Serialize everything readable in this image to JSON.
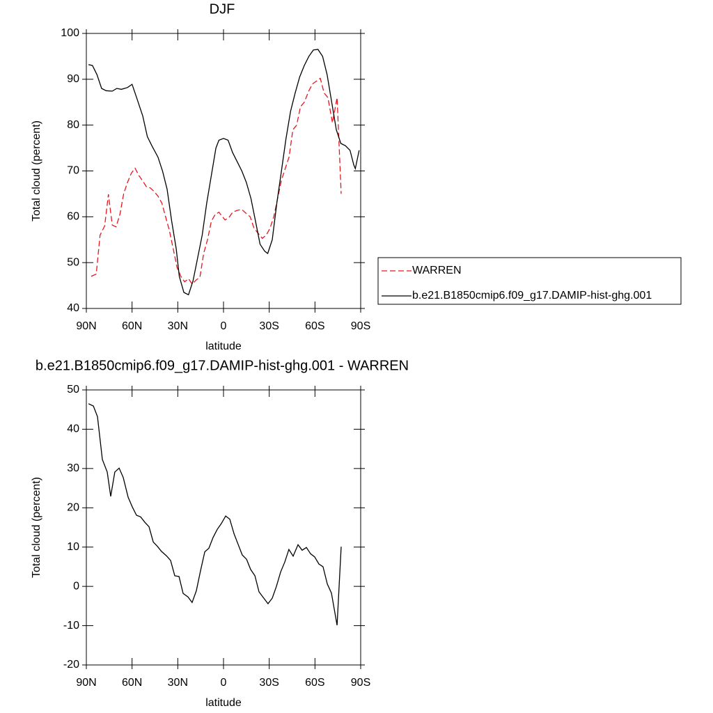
{
  "chart_data": [
    {
      "type": "line",
      "title": "DJF",
      "xlabel": "latitude",
      "ylabel": "Total cloud (percent)",
      "xlim": [
        90,
        -90
      ],
      "ylim": [
        40,
        100
      ],
      "xticks": [
        {
          "value": 90,
          "label": "90N"
        },
        {
          "value": 60,
          "label": "60N"
        },
        {
          "value": 30,
          "label": "30N"
        },
        0,
        {
          "value": -30,
          "label": "30S"
        },
        {
          "value": -60,
          "label": "60S"
        },
        {
          "value": -90,
          "label": "90S"
        }
      ],
      "yticks": [
        40,
        50,
        60,
        70,
        80,
        90,
        100
      ],
      "legend": "right",
      "series": [
        {
          "name": "WARREN",
          "color": "#e8141c",
          "dashed": true,
          "x": [
            86.8,
            83.5,
            81,
            78,
            75.5,
            73,
            70.5,
            68,
            65.5,
            63,
            60.5,
            58,
            55.5,
            53,
            50.5,
            48,
            45.5,
            43,
            40.5,
            38,
            35.5,
            33,
            30.5,
            28,
            25.5,
            23,
            20.5,
            18,
            15.5,
            13,
            10.5,
            8,
            5.5,
            3,
            -1,
            -3.5,
            -6,
            -9,
            -12,
            -15,
            -17.5,
            -20,
            -22.5,
            -25.5,
            -28,
            -30.5,
            -33,
            -35.5,
            -38,
            -40.5,
            -43,
            -45.5,
            -48,
            -50.5,
            -53,
            -56,
            -58.5,
            -63.5,
            -66,
            -68.5,
            -71.5,
            -74.5,
            -77.2
          ],
          "values": [
            47,
            47.5,
            56,
            58,
            64.9,
            58.2,
            57.8,
            60.5,
            65,
            67.5,
            69.5,
            70.6,
            69,
            67.8,
            66.5,
            66.3,
            65.5,
            64.5,
            63,
            60,
            57,
            53,
            49,
            47,
            45.8,
            46.5,
            45.3,
            46.2,
            46.8,
            52,
            55,
            59,
            60.5,
            61,
            59.3,
            59.8,
            61,
            61.4,
            61.6,
            60.7,
            60,
            57.5,
            56.5,
            55.3,
            56,
            57.5,
            60,
            64,
            68,
            70.5,
            73,
            79,
            80,
            84,
            85,
            87.5,
            89,
            90.2,
            87,
            86,
            80.5,
            86,
            65
          ]
        },
        {
          "name": "b.e21.B1850cmip6.f09_g17.DAMIP-hist-ghg.001",
          "color": "#000000",
          "dashed": false,
          "x": [
            88.6,
            86,
            83,
            80,
            77,
            73,
            70,
            67,
            63,
            60,
            57,
            53,
            50,
            47,
            43,
            40,
            37,
            34,
            31,
            29,
            26,
            23,
            20,
            17,
            14,
            11,
            8,
            5,
            3,
            0,
            -3,
            -6,
            -9,
            -12,
            -15,
            -18,
            -21,
            -24,
            -27,
            -29,
            -32,
            -35,
            -38,
            -41,
            -44,
            -47,
            -50,
            -53,
            -56,
            -59,
            -62,
            -65,
            -68,
            -71,
            -74,
            -77,
            -80,
            -83,
            -85.5,
            -86.5,
            -89
          ],
          "values": [
            93.2,
            93,
            91,
            88,
            87.5,
            87.4,
            88,
            87.8,
            88.2,
            88.9,
            86,
            82,
            77.5,
            75.5,
            73,
            70,
            66,
            59,
            53,
            47,
            43.5,
            43,
            46,
            51,
            56,
            63,
            69,
            75,
            76.7,
            77.1,
            76.7,
            74,
            72,
            70,
            67.5,
            64,
            59,
            54,
            52.5,
            52,
            55,
            63,
            70,
            77,
            83,
            87,
            90.5,
            93,
            95,
            96.4,
            96.5,
            95,
            91,
            85,
            79,
            76,
            75.5,
            74.5,
            71.3,
            70.5,
            74.5
          ]
        }
      ]
    },
    {
      "type": "line",
      "title": "b.e21.B1850cmip6.f09_g17.DAMIP-hist-ghg.001 - WARREN",
      "xlabel": "latitude",
      "ylabel": "Total cloud (percent)",
      "xlim": [
        90,
        -90
      ],
      "ylim": [
        -20,
        50
      ],
      "xticks": [
        {
          "value": 90,
          "label": "90N"
        },
        {
          "value": 60,
          "label": "60N"
        },
        {
          "value": 30,
          "label": "30N"
        },
        0,
        {
          "value": -30,
          "label": "30S"
        },
        {
          "value": -60,
          "label": "60S"
        },
        {
          "value": -90,
          "label": "90S"
        }
      ],
      "yticks": [
        -20,
        -10,
        0,
        10,
        20,
        30,
        40,
        50
      ],
      "color": "#000000",
      "x": [
        88.6,
        85.4,
        82.7,
        79.5,
        76.3,
        74,
        71.3,
        68.5,
        65.8,
        62.6,
        59.8,
        57.1,
        54.4,
        51.6,
        48.9,
        46.1,
        43.4,
        40.7,
        37.5,
        34.7,
        32,
        29.2,
        26.5,
        23.3,
        20.6,
        17.8,
        15.1,
        12.3,
        9.6,
        6.9,
        4.1,
        1.4,
        -1.4,
        -4.1,
        -6.9,
        -9.6,
        -12.3,
        -15.1,
        -17.8,
        -20.6,
        -23.3,
        -26,
        -29.2,
        -32,
        -34.7,
        -37.5,
        -40.2,
        -42.9,
        -45.7,
        -48.9,
        -51.6,
        -54.4,
        -57.1,
        -59.8,
        -62.6,
        -65.3,
        -68.1,
        -70.8,
        -74.5,
        -77.2
      ],
      "values": [
        46.5,
        45.9,
        43.2,
        32.3,
        29.1,
        22.9,
        29.1,
        30.1,
        27.7,
        22.7,
        20.2,
        18.1,
        17.7,
        16.3,
        15.2,
        11.3,
        10.2,
        8.9,
        7.8,
        6.6,
        2.7,
        2.5,
        -1.8,
        -2.7,
        -4.1,
        -1.1,
        3.9,
        8.8,
        9.7,
        12.4,
        14.5,
        16,
        17.9,
        17.1,
        13.4,
        10.7,
        8,
        6.9,
        4.3,
        2.7,
        -1.4,
        -2.8,
        -4.4,
        -3,
        0,
        3.7,
        6.2,
        9.4,
        7.7,
        10.6,
        9.2,
        9.9,
        8.3,
        7.5,
        5.7,
        5,
        0.6,
        -1.7,
        -9.9,
        10.1
      ]
    }
  ]
}
